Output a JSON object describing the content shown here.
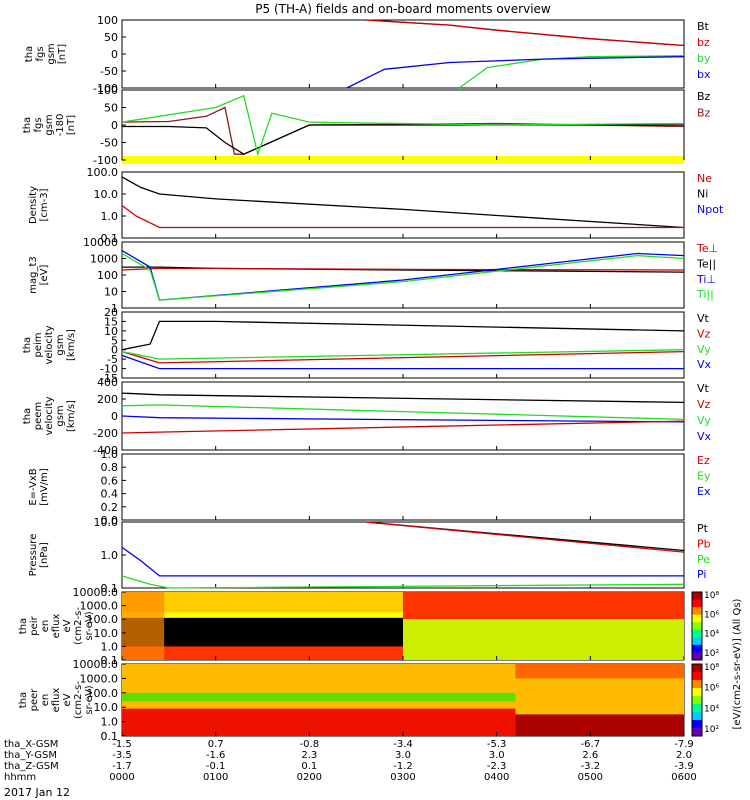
{
  "title": "P5 (TH-A) fields and on-board moments overview",
  "date": "2017 Jan 12",
  "colors": {
    "black": "#000000",
    "red": "#cc0000",
    "green": "#22dd22",
    "blue": "#0000ee",
    "darkred": "#8b1a1a",
    "yellow": "#ffff00"
  },
  "panels": [
    {
      "ylabel": [
        "tha",
        "fgs",
        "gsm",
        "[nT]"
      ],
      "ticks": [
        "100",
        "50",
        "0",
        "-50",
        "-100"
      ],
      "legend": [
        [
          "Bt",
          "black"
        ],
        [
          "bz",
          "red"
        ],
        [
          "by",
          "green"
        ],
        [
          "bx",
          "blue"
        ]
      ]
    },
    {
      "ylabel": [
        "tha",
        "fgs",
        "gsm",
        "-180",
        "[nT]"
      ],
      "ticks": [
        "100",
        "50",
        "0",
        "-50",
        "-100"
      ],
      "legend": [
        [
          "Bz",
          "black"
        ],
        [
          "Bz",
          "darkred"
        ]
      ]
    },
    {
      "ylabel": [
        "Density",
        "[cm-3]"
      ],
      "ticks": [
        "100.0",
        "10.0",
        "1.0",
        "0.1"
      ],
      "legend": [
        [
          "Ne",
          "red"
        ],
        [
          "Ni",
          "black"
        ],
        [
          "Npot",
          "blue"
        ]
      ]
    },
    {
      "ylabel": [
        "mag_t3",
        "[eV]"
      ],
      "ticks": [
        "10000",
        "1000",
        "100",
        "10",
        "1"
      ],
      "legend": [
        [
          "Te⊥",
          "red"
        ],
        [
          "Te||",
          "black"
        ],
        [
          "Ti⊥",
          "blue"
        ],
        [
          "Ti||",
          "green"
        ]
      ]
    },
    {
      "ylabel": [
        "tha",
        "peim",
        "velocity",
        "gsm",
        "[km/s]"
      ],
      "ticks": [
        "20",
        "15",
        "10",
        "5",
        "0",
        "-5",
        "-10",
        "-15"
      ],
      "legend": [
        [
          "Vt",
          "black"
        ],
        [
          "Vz",
          "red"
        ],
        [
          "Vy",
          "green"
        ],
        [
          "Vx",
          "blue"
        ]
      ]
    },
    {
      "ylabel": [
        "tha",
        "peem",
        "velocity",
        "gsm",
        "[km/s]"
      ],
      "ticks": [
        "400",
        "200",
        "0",
        "-200",
        "-400"
      ],
      "legend": [
        [
          "Vt",
          "black"
        ],
        [
          "Vz",
          "red"
        ],
        [
          "Vy",
          "green"
        ],
        [
          "Vx",
          "blue"
        ]
      ]
    },
    {
      "ylabel": [
        "E=-VxB",
        "[mV/m]"
      ],
      "ticks": [
        "1.0",
        "0.8",
        "0.6",
        "0.4",
        "0.2",
        "0.0"
      ],
      "legend": [
        [
          "Ez",
          "red"
        ],
        [
          "Ey",
          "green"
        ],
        [
          "Ex",
          "blue"
        ]
      ]
    },
    {
      "ylabel": [
        "Pressure",
        "[nPa]"
      ],
      "ticks": [
        "10.0",
        "1.0",
        "0.1"
      ],
      "legend": [
        [
          "Pt",
          "black"
        ],
        [
          "Pb",
          "red"
        ],
        [
          "Pe",
          "green"
        ],
        [
          "Pi",
          "blue"
        ]
      ]
    },
    {
      "ylabel": [
        "tha",
        "peir",
        "en",
        "eflux",
        "eV",
        "(cm2-s-",
        "sr-eV)"
      ],
      "ticks": [
        "10000.0",
        "1000.0",
        "100.0",
        "10.0",
        "1.0",
        "0.1"
      ],
      "legend": []
    },
    {
      "ylabel": [
        "tha",
        "peer",
        "en",
        "eflux",
        "eV",
        "(cm2-s-",
        "sr-eV)"
      ],
      "ticks": [
        "10000.0",
        "1000.0",
        "100.0",
        "10.0",
        "1.0",
        "0.1"
      ],
      "legend": []
    }
  ],
  "colorbar": {
    "label": "[eV/(cm2-s-sr-eV)] (All Qs)",
    "ticks_top": [
      "10⁸",
      "10⁶",
      "10⁴",
      "10²"
    ],
    "ticks_bottom": [
      "10⁸",
      "10⁶",
      "10⁴",
      "10²"
    ]
  },
  "xaxis": {
    "row_labels": [
      "tha_X-GSM",
      "tha_Y-GSM",
      "tha_Z-GSM",
      "hhmm"
    ],
    "columns": [
      [
        "-1.5",
        "-3.5",
        "-1.7",
        "0000"
      ],
      [
        "0.7",
        "-1.6",
        "-0.1",
        "0100"
      ],
      [
        "-0.8",
        "2.3",
        "0.1",
        "0200"
      ],
      [
        "-3.4",
        "3.0",
        "-1.2",
        "0300"
      ],
      [
        "-5.3",
        "3.0",
        "-2.3",
        "0400"
      ],
      [
        "-6.7",
        "2.6",
        "-3.2",
        "0500"
      ],
      [
        "-7.9",
        "2.0",
        "-3.9",
        "0600"
      ]
    ]
  },
  "chart_data": {
    "type": "line",
    "title": "P5 (TH-A) fields and on-board moments overview",
    "x_unit": "hhmm",
    "x_range": [
      "0000",
      "0600"
    ],
    "panels": [
      {
        "name": "tha fgs gsm [nT]",
        "ylim": [
          -100,
          100
        ],
        "series": [
          {
            "name": "Bt",
            "x": [
              2.6,
              3.5,
              4.0,
              5.0,
              6.0
            ],
            "values": [
              100,
              85,
              70,
              45,
              25
            ]
          },
          {
            "name": "bz",
            "x": [
              2.6,
              3.5,
              4.0,
              5.0,
              6.0
            ],
            "values": [
              100,
              85,
              70,
              45,
              25
            ]
          },
          {
            "name": "by",
            "x": [
              3.6,
              3.9,
              4.5,
              5.0,
              6.0
            ],
            "values": [
              -100,
              -40,
              -15,
              -8,
              -5
            ]
          },
          {
            "name": "bx",
            "x": [
              2.4,
              2.8,
              3.5,
              4.5,
              5.5,
              6.0
            ],
            "values": [
              -100,
              -45,
              -25,
              -15,
              -10,
              -8
            ]
          }
        ]
      },
      {
        "name": "tha fgs gsm -180 [nT]",
        "ylim": [
          -120,
          120
        ],
        "series": [
          {
            "name": "Bz",
            "x": [
              0.0,
              0.5,
              0.9,
              1.1,
              1.2,
              1.3,
              2.0,
              4.0,
              6.0
            ],
            "values": [
              10,
              12,
              30,
              60,
              -100,
              -100,
              0,
              5,
              -5
            ]
          },
          {
            "name": "black",
            "x": [
              0.0,
              0.5,
              0.9,
              1.1,
              1.3,
              2.0,
              4.0,
              6.0
            ],
            "values": [
              -5,
              -5,
              -10,
              -60,
              -100,
              0,
              0,
              0
            ]
          },
          {
            "name": "green",
            "x": [
              0.0,
              1.0,
              1.3,
              1.45,
              1.6,
              2.0,
              4.0,
              6.0
            ],
            "values": [
              10,
              60,
              100,
              -100,
              40,
              10,
              0,
              5
            ]
          }
        ]
      },
      {
        "name": "Density [cm-3]",
        "scale": "log",
        "ylim": [
          0.1,
          100
        ],
        "series": [
          {
            "name": "Ni",
            "x": [
              0.0,
              0.2,
              0.4,
              1.0,
              3.0,
              6.0
            ],
            "values": [
              60,
              20,
              10,
              6,
              2,
              0.3
            ]
          },
          {
            "name": "Ne",
            "x": [
              0.0,
              0.15,
              0.4,
              1.0,
              3.0,
              6.0
            ],
            "values": [
              3,
              1,
              0.3,
              0.3,
              0.3,
              0.3
            ]
          }
        ]
      },
      {
        "name": "mag_t3 [eV]",
        "scale": "log",
        "ylim": [
          1,
          10000
        ],
        "series": [
          {
            "name": "Te||",
            "x": [
              0.0,
              0.4,
              1.0,
              3.0,
              6.0
            ],
            "values": [
              300,
              300,
              250,
              200,
              150
            ]
          },
          {
            "name": "Te⊥",
            "x": [
              0.0,
              0.4,
              1.0,
              3.0,
              6.0
            ],
            "values": [
              200,
              250,
              250,
              220,
              200
            ]
          },
          {
            "name": "Ti⊥",
            "x": [
              0.0,
              0.3,
              0.4,
              3.0,
              5.5,
              6.0
            ],
            "values": [
              3000,
              300,
              3,
              50,
              2000,
              1500
            ]
          },
          {
            "name": "Ti||",
            "x": [
              0.0,
              0.3,
              0.4,
              3.0,
              5.5,
              6.0
            ],
            "values": [
              2000,
              200,
              3,
              40,
              1500,
              1000
            ]
          }
        ]
      },
      {
        "name": "tha peim velocity gsm [km/s]",
        "ylim": [
          -15,
          20
        ],
        "series": [
          {
            "name": "Vt",
            "x": [
              0.0,
              0.3,
              0.4,
              1.0,
              6.0
            ],
            "values": [
              0,
              3,
              15,
              15,
              10
            ]
          },
          {
            "name": "Vz",
            "x": [
              0.0,
              0.4,
              6.0
            ],
            "values": [
              -1,
              -7,
              -1
            ]
          },
          {
            "name": "Vy",
            "x": [
              0.0,
              0.4,
              6.0
            ],
            "values": [
              -1,
              -5,
              0
            ]
          },
          {
            "name": "Vx",
            "x": [
              0.0,
              0.4,
              6.0
            ],
            "values": [
              -3,
              -10,
              -10
            ]
          }
        ]
      },
      {
        "name": "tha peem velocity gsm [km/s]",
        "ylim": [
          -400,
          400
        ],
        "series": [
          {
            "name": "Vt",
            "x": [
              0.0,
              0.4,
              6.0
            ],
            "values": [
              270,
              250,
              160
            ]
          },
          {
            "name": "Vy",
            "x": [
              0.0,
              0.4,
              6.0
            ],
            "values": [
              120,
              130,
              -40
            ]
          },
          {
            "name": "Vx",
            "x": [
              0.0,
              0.4,
              6.0
            ],
            "values": [
              0,
              -20,
              -70
            ]
          },
          {
            "name": "Vz",
            "x": [
              0.0,
              0.4,
              6.0
            ],
            "values": [
              -200,
              -190,
              -60
            ]
          }
        ]
      },
      {
        "name": "E=-VxB [mV/m]",
        "ylim": [
          0,
          1
        ],
        "series": []
      },
      {
        "name": "Pressure [nPa]",
        "scale": "log",
        "ylim": [
          0.05,
          20
        ],
        "series": [
          {
            "name": "Pt",
            "x": [
              2.6,
              6.0
            ],
            "values": [
              20,
              1.5
            ]
          },
          {
            "name": "Pb",
            "x": [
              2.6,
              6.0
            ],
            "values": [
              20,
              1.3
            ]
          },
          {
            "name": "Pi",
            "x": [
              0.0,
              0.2,
              0.4,
              6.0
            ],
            "values": [
              2,
              0.6,
              0.15,
              0.15
            ]
          },
          {
            "name": "Pe",
            "x": [
              0.0,
              0.3,
              0.5,
              6.0
            ],
            "values": [
              0.15,
              0.07,
              0.05,
              0.07
            ]
          }
        ]
      }
    ]
  }
}
